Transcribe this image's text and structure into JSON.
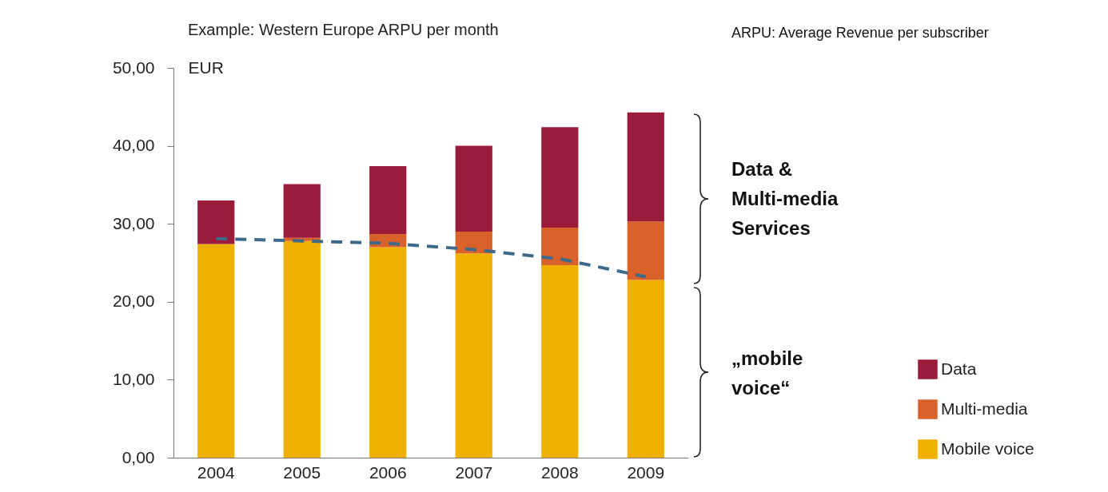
{
  "chart_data": {
    "type": "bar",
    "title": "Example: Western Europe ARPU per month",
    "ylabel": "EUR",
    "categories": [
      "2004",
      "2005",
      "2006",
      "2007",
      "2008",
      "2009"
    ],
    "stacked": true,
    "series": [
      {
        "name": "Mobile voice",
        "color": "#f0b000",
        "values": [
          27.4,
          27.8,
          27.0,
          26.2,
          24.7,
          22.8
        ]
      },
      {
        "name": "Multi-media",
        "color": "#d9622b",
        "values": [
          0,
          0.4,
          1.7,
          2.8,
          4.8,
          7.5
        ]
      },
      {
        "name": "Data",
        "color": "#9b1b3a",
        "values": [
          5.6,
          6.9,
          8.7,
          11.0,
          12.9,
          14.0
        ]
      },
      {
        "type": "line",
        "color": "#3e6a8a",
        "line_style": "dashed",
        "values": [
          28.1,
          27.8,
          27.5,
          26.7,
          25.5,
          23.2
        ]
      }
    ],
    "ylim": [
      0,
      50
    ],
    "yticks": [
      {
        "value": 0,
        "label": "0,00"
      },
      {
        "value": 10,
        "label": "10,00"
      },
      {
        "value": 20,
        "label": "20,00"
      },
      {
        "value": 30,
        "label": "30,00"
      },
      {
        "value": 40,
        "label": "40,00"
      },
      {
        "value": 50,
        "label": "50,00"
      }
    ],
    "annotations": [
      "ARPU: Average Revenue per subscriber",
      "Data &\nMulti-media\nServices",
      "„mobile\nvoice“"
    ],
    "legend": "bottom right",
    "grid": false
  }
}
